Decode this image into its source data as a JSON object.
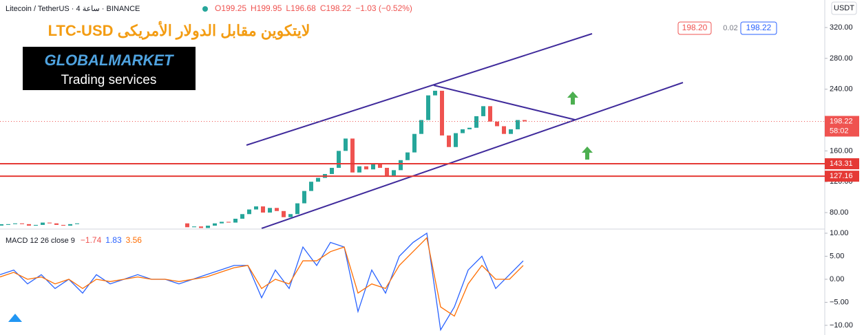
{
  "header": {
    "symbol": "Litecoin / TetherUS · 4 ساعة · BINANCE",
    "ohlc": [
      "O199.25",
      "H199.95",
      "L196.68",
      "C198.22",
      "−1.03 (−0.52%)"
    ],
    "currency": "USDT",
    "sell": "198.20",
    "spread": "0.02",
    "buy": "198.22"
  },
  "overlay": {
    "title": "LTC-USD لايتكوين مقابل الدولار الأمريكى",
    "logo": "GLOBALMARKET",
    "tagline": "Trading services"
  },
  "chart_data": [
    {
      "type": "candlestick",
      "up_color": "#26a69a",
      "down_color": "#ef5350",
      "values": [
        64,
        65,
        66,
        65,
        63,
        64,
        67,
        66,
        64,
        63,
        65,
        66,
        null,
        null,
        null,
        null,
        null,
        null,
        null,
        null,
        null,
        null,
        null,
        null,
        null,
        null,
        null,
        61,
        62,
        60,
        63,
        66,
        68,
        67,
        72,
        78,
        84,
        88,
        80,
        86,
        82,
        74,
        78,
        92,
        108,
        120,
        125,
        130,
        138,
        160,
        176,
        132,
        140,
        136,
        143,
        138,
        128,
        135,
        148,
        158,
        182,
        200,
        232,
        238,
        180,
        165,
        183,
        188,
        190,
        205,
        218,
        198,
        192,
        182,
        188,
        200,
        198.22
      ],
      "ylim": [
        58.6,
        355.7
      ],
      "yticks": [
        {
          "value": 80,
          "label": "80.00"
        },
        {
          "value": 120,
          "label": "120.00"
        },
        {
          "value": 160,
          "label": "160.00"
        },
        {
          "value": 200,
          "label": "200.00"
        },
        {
          "value": 240,
          "label": "240.00"
        },
        {
          "value": 280,
          "label": "280.00"
        },
        {
          "value": 320,
          "label": "320.00"
        }
      ],
      "levels": [
        143.31,
        127.16
      ],
      "level_color": "#e53935",
      "last_price": 198.22,
      "countdown": "58:02"
    },
    {
      "type": "line",
      "title": "MACD 12 26 close 9",
      "readings": [
        "−1.74",
        "1.83",
        "3.56"
      ],
      "series": [
        {
          "name": "MACD",
          "color": "#2962ff",
          "values": [
            1,
            2,
            -1,
            1,
            -2,
            0,
            -3,
            1,
            -1,
            0,
            1,
            0,
            0,
            -1,
            0,
            1,
            2,
            3,
            3,
            -4,
            2,
            -2,
            7,
            3,
            8,
            7,
            -7,
            2,
            -3,
            5,
            8,
            10,
            -11,
            -6,
            2,
            5,
            -2,
            1,
            4
          ]
        },
        {
          "name": "Signal",
          "color": "#ff6d00",
          "values": [
            0.5,
            1.5,
            0,
            0.5,
            -1,
            0,
            -2,
            0,
            -0.5,
            0,
            0.5,
            0,
            0,
            -0.5,
            0,
            0.5,
            1.5,
            2.5,
            3,
            -2,
            0,
            -1,
            4,
            4,
            6,
            7,
            -3,
            -1,
            -2,
            3,
            6,
            9,
            -6,
            -8,
            -1,
            3,
            0,
            0,
            3
          ]
        }
      ],
      "ylim": [
        -12.1,
        10.9
      ],
      "yticks": [
        {
          "value": 10,
          "label": "10.00"
        },
        {
          "value": 5,
          "label": "5.00"
        },
        {
          "value": 0,
          "label": "0.00"
        },
        {
          "value": -5,
          "label": "−5.00"
        },
        {
          "value": -10,
          "label": "−10.00"
        }
      ]
    }
  ]
}
